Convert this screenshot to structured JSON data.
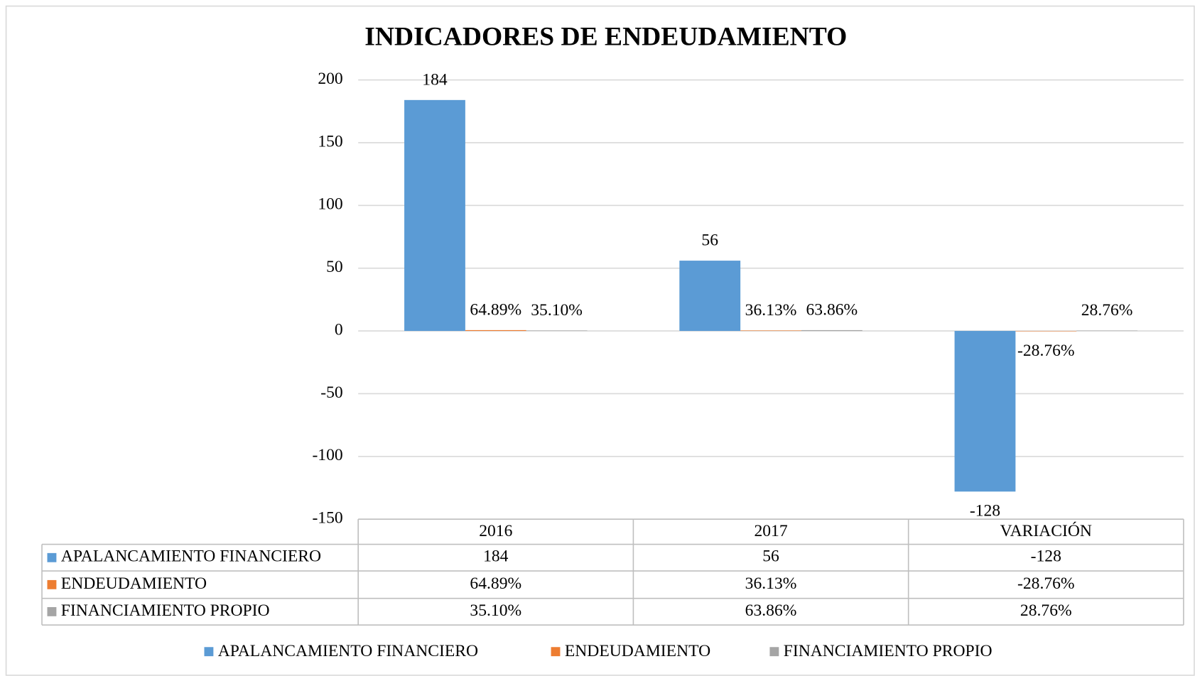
{
  "chart_data": {
    "type": "bar",
    "title": "INDICADORES DE ENDEUDAMIENTO",
    "categories": [
      "2016",
      "2017",
      "VARIACIÓN"
    ],
    "series": [
      {
        "name": "APALANCAMIENTO FINANCIERO",
        "color": "#5b9bd5",
        "values": [
          184,
          56,
          -128
        ]
      },
      {
        "name": "ENDEUDAMIENTO",
        "color": "#ed7d31",
        "values": [
          0.6489,
          0.3613,
          -0.2876
        ],
        "value_labels": [
          "64.89%",
          "36.13%",
          "-28.76%"
        ]
      },
      {
        "name": "FINANCIAMIENTO PROPIO",
        "color": "#a5a5a5",
        "values": [
          0.351,
          0.6386,
          0.2876
        ],
        "value_labels": [
          "35.10%",
          "63.86%",
          "28.76%"
        ]
      }
    ],
    "ylim": [
      -150,
      200
    ],
    "yticks": [
      -150,
      -100,
      -50,
      0,
      50,
      100,
      150,
      200
    ],
    "grid": true,
    "legend": "bottom"
  }
}
